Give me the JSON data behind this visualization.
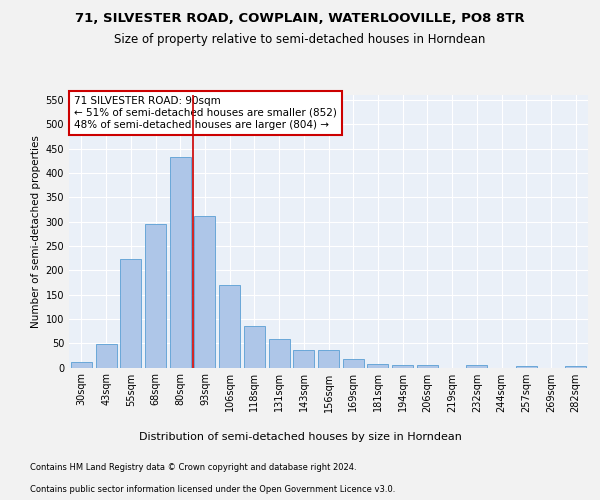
{
  "title1": "71, SILVESTER ROAD, COWPLAIN, WATERLOOVILLE, PO8 8TR",
  "title2": "Size of property relative to semi-detached houses in Horndean",
  "xlabel": "Distribution of semi-detached houses by size in Horndean",
  "ylabel": "Number of semi-detached properties",
  "categories": [
    "30sqm",
    "43sqm",
    "55sqm",
    "68sqm",
    "80sqm",
    "93sqm",
    "106sqm",
    "118sqm",
    "131sqm",
    "143sqm",
    "156sqm",
    "169sqm",
    "181sqm",
    "194sqm",
    "206sqm",
    "219sqm",
    "232sqm",
    "244sqm",
    "257sqm",
    "269sqm",
    "282sqm"
  ],
  "values": [
    12,
    48,
    224,
    295,
    433,
    312,
    170,
    85,
    58,
    35,
    35,
    17,
    7,
    5,
    5,
    0,
    5,
    0,
    3,
    0,
    3
  ],
  "bar_color": "#aec6e8",
  "bar_edge_color": "#5a9fd4",
  "property_bin_index": 4,
  "annotation_title": "71 SILVESTER ROAD: 90sqm",
  "annotation_line1": "← 51% of semi-detached houses are smaller (852)",
  "annotation_line2": "48% of semi-detached houses are larger (804) →",
  "vline_color": "#cc0000",
  "box_edge_color": "#cc0000",
  "footnote1": "Contains HM Land Registry data © Crown copyright and database right 2024.",
  "footnote2": "Contains public sector information licensed under the Open Government Licence v3.0.",
  "ylim": [
    0,
    560
  ],
  "yticks": [
    0,
    50,
    100,
    150,
    200,
    250,
    300,
    350,
    400,
    450,
    500,
    550
  ],
  "bg_color": "#eaf0f8",
  "grid_color": "#ffffff",
  "title1_fontsize": 9.5,
  "title2_fontsize": 8.5,
  "footnote_fontsize": 6.0,
  "xlabel_fontsize": 8.0,
  "ylabel_fontsize": 7.5,
  "tick_fontsize": 7.0,
  "annot_fontsize": 7.5
}
